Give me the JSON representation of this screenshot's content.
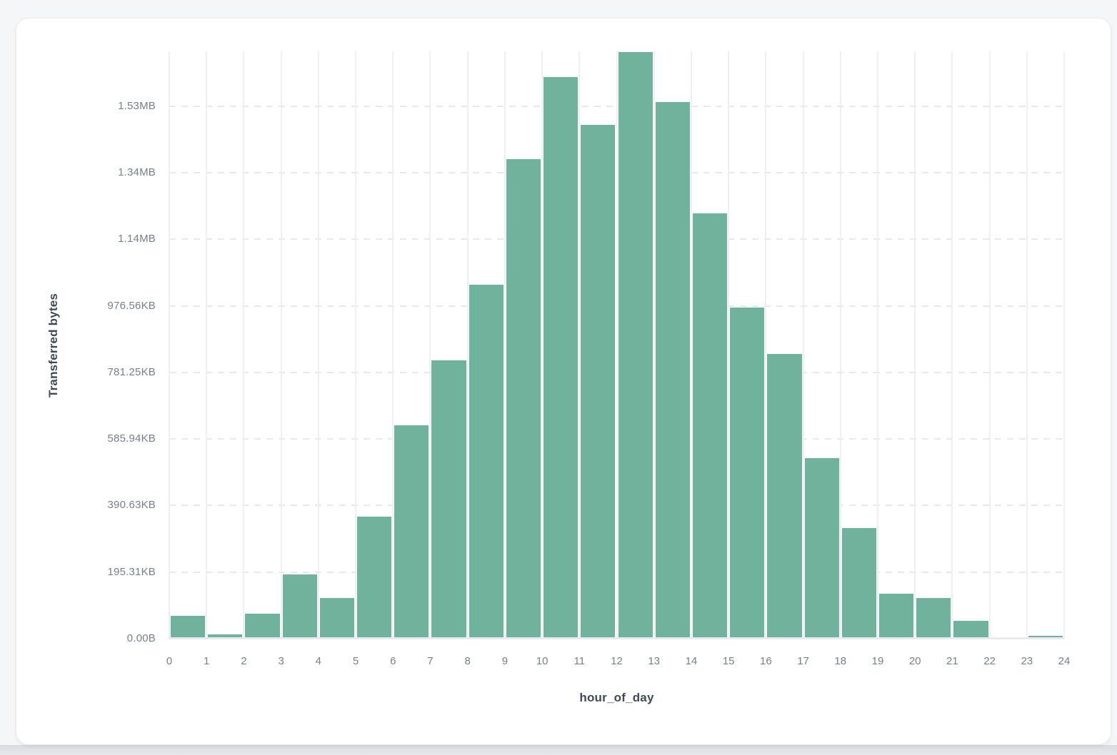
{
  "page": {
    "background_color": "#f5f6f8",
    "card_background_color": "#ffffff",
    "bottom_band_color": "#dee0e3"
  },
  "colors": {
    "bar": "#6FB39C",
    "tick_label": "#75808c",
    "axis_title": "#3e4a56",
    "gridline": "#edeff2"
  },
  "chart_data": {
    "type": "bar",
    "title": "",
    "xlabel": "hour_of_day",
    "ylabel": "Transferred bytes",
    "legend_position": "none",
    "grid": true,
    "categories": [
      0,
      1,
      2,
      3,
      4,
      5,
      6,
      7,
      8,
      9,
      10,
      11,
      12,
      13,
      14,
      15,
      16,
      17,
      18,
      19,
      20,
      21,
      22,
      23
    ],
    "values_bytes": [
      71000,
      15000,
      77000,
      195000,
      124000,
      369000,
      643000,
      839000,
      1066000,
      1443000,
      1690000,
      1546000,
      1765000,
      1615000,
      1280000,
      997000,
      858000,
      545000,
      335000,
      137000,
      124000,
      56000,
      2500,
      11000
    ],
    "x_tick_labels": [
      "0",
      "1",
      "2",
      "3",
      "4",
      "5",
      "6",
      "7",
      "8",
      "9",
      "10",
      "11",
      "12",
      "13",
      "14",
      "15",
      "16",
      "17",
      "18",
      "19",
      "20",
      "21",
      "22",
      "23",
      "24"
    ],
    "y_ticks": [
      {
        "label": "0.00B",
        "bytes": 0
      },
      {
        "label": "195.31KB",
        "bytes": 200000
      },
      {
        "label": "390.63KB",
        "bytes": 400000
      },
      {
        "label": "585.94KB",
        "bytes": 600000
      },
      {
        "label": "781.25KB",
        "bytes": 800000
      },
      {
        "label": "976.56KB",
        "bytes": 1000000
      },
      {
        "label": "1.14MB",
        "bytes": 1200000
      },
      {
        "label": "1.34MB",
        "bytes": 1400000
      },
      {
        "label": "1.53MB",
        "bytes": 1600000
      }
    ],
    "ylim_bytes": [
      0,
      1765000
    ]
  }
}
